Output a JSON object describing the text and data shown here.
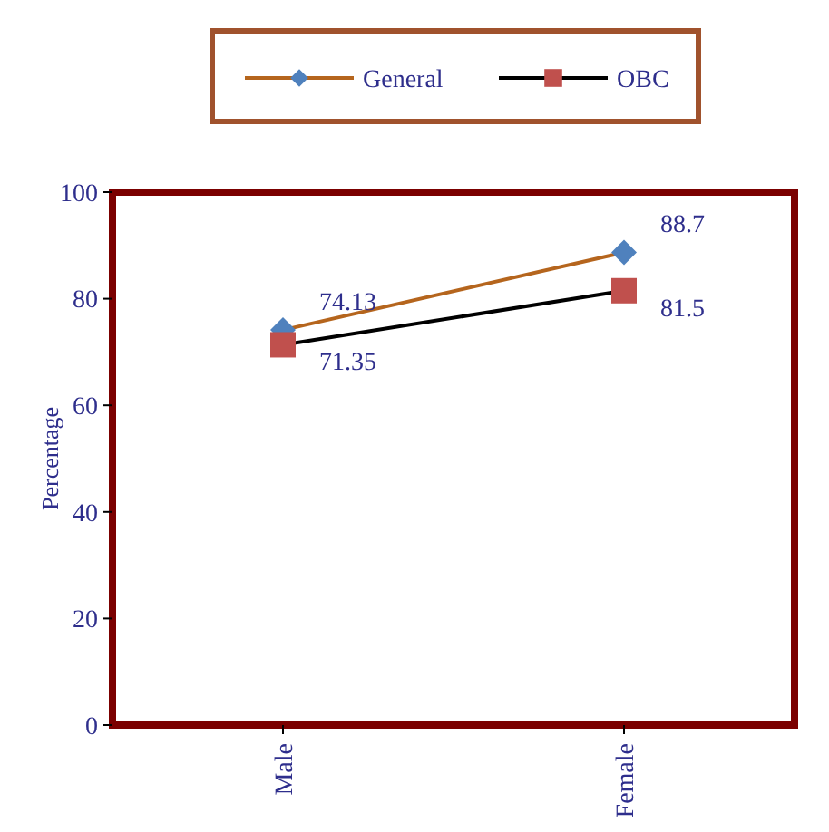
{
  "chart_data": {
    "type": "line",
    "ylabel": "Percentage",
    "categories": [
      "Male",
      "Female"
    ],
    "series": [
      {
        "name": "General",
        "color": "#b5651d",
        "values": [
          74.13,
          88.7
        ],
        "marker": "diamond",
        "colors": [
          "#4f81bd",
          "#4f81bd"
        ]
      },
      {
        "name": "OBC",
        "color": "#000000",
        "values": [
          71.35,
          81.5
        ],
        "marker": "square",
        "colors": [
          "#c0504d",
          "#c0504d"
        ]
      }
    ],
    "ylim": [
      0,
      100
    ],
    "yticks": [
      0,
      20,
      40,
      60,
      80,
      100
    ],
    "data_labels": true,
    "legend": "top",
    "grid": false,
    "line_style": "solid"
  }
}
